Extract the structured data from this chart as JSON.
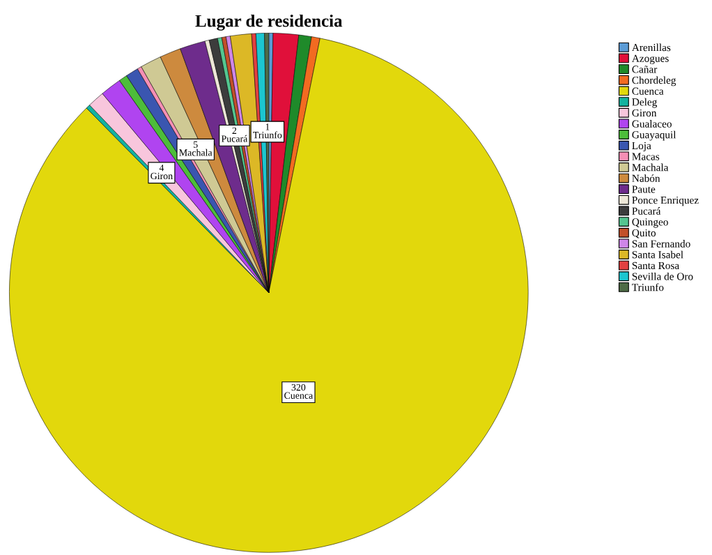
{
  "chart_data": {
    "type": "pie",
    "title": "Lugar de residencia",
    "categories": [
      "Arenillas",
      "Azogues",
      "Cañar",
      "Chordeleg",
      "Cuenca",
      "Deleg",
      "Giron",
      "Gualaceo",
      "Guayaquil",
      "Loja",
      "Macas",
      "Machala",
      "Nabón",
      "Paute",
      "Ponce Enriquez",
      "Pucará",
      "Quingeo",
      "Quito",
      "San Fernando",
      "Santa Isabel",
      "Santa Rosa",
      "Sevilla de Oro",
      "Triunfo"
    ],
    "values": [
      1,
      6,
      3,
      2,
      320,
      1,
      4,
      5,
      2,
      3,
      1,
      5,
      5,
      6,
      1,
      2,
      1,
      1,
      1,
      5,
      1,
      2,
      1
    ],
    "colors": [
      "#5b9bd5",
      "#e0103a",
      "#1f8a2a",
      "#f26b21",
      "#e2d80c",
      "#12b3a0",
      "#f8c6dc",
      "#b044f0",
      "#4dbd3a",
      "#3a56b0",
      "#f58fb5",
      "#cfc994",
      "#cd8a3e",
      "#6e2c8c",
      "#eee8d8",
      "#3c3c3c",
      "#54c690",
      "#c2502a",
      "#cf86e8",
      "#dcb826",
      "#e24040",
      "#1cc6d0",
      "#4e6b46"
    ],
    "value_labels": [
      null,
      null,
      null,
      null,
      "320",
      null,
      "4",
      null,
      null,
      null,
      null,
      "5",
      null,
      null,
      null,
      "2",
      null,
      null,
      null,
      null,
      null,
      null,
      "1"
    ],
    "legend": "top right"
  }
}
